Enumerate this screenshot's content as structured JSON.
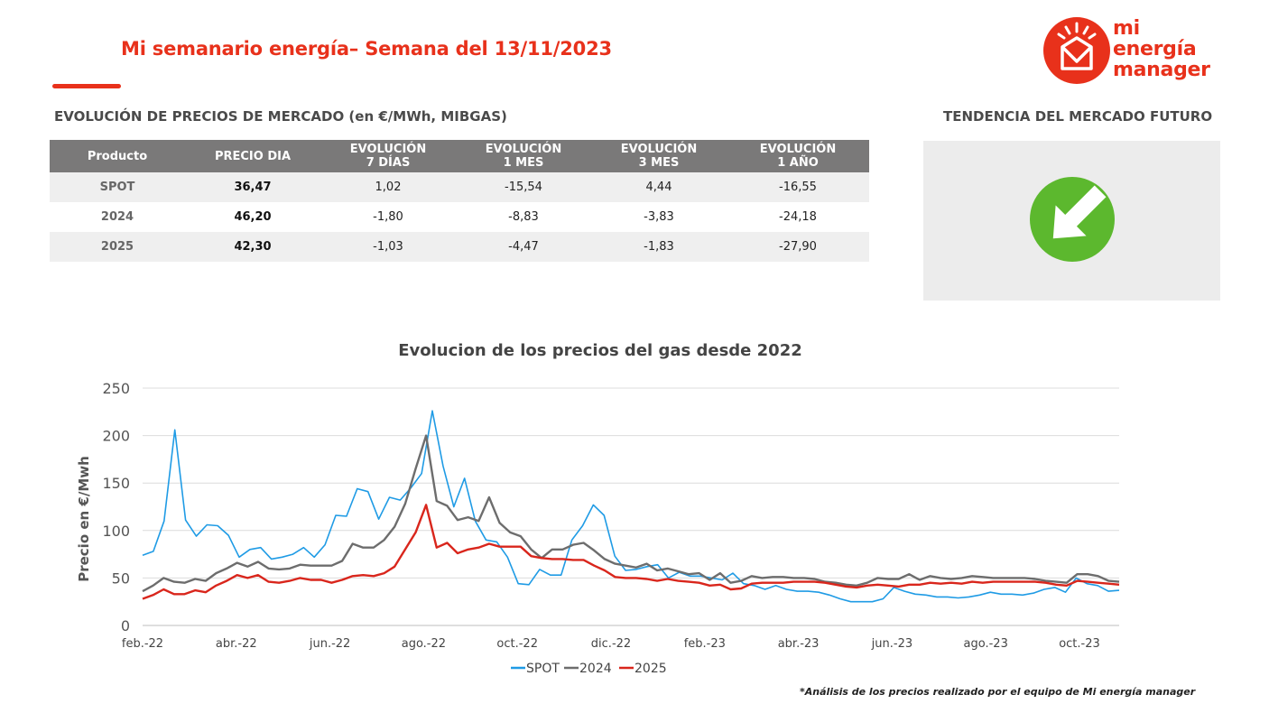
{
  "header": {
    "title": "Mi semanario energía– Semana del 13/11/2023",
    "logo_lines": [
      "mi",
      "energía",
      "manager"
    ]
  },
  "market": {
    "section_title": "EVOLUCIÓN DE PRECIOS DE MERCADO (en €/MWh, MIBGAS)",
    "headers": {
      "product": "Producto",
      "price_day": "PRECIO DIA",
      "d7_line1": "EVOLUCIÓN",
      "d7_line2": "7 DÍAS",
      "m1_line1": "EVOLUCIÓN",
      "m1_line2": "1 MES",
      "m3_line1": "EVOLUCIÓN",
      "m3_line2": "3 MES",
      "y1_line1": "EVOLUCIÓN",
      "y1_line2": "1 AÑO"
    },
    "rows": [
      {
        "product": "SPOT",
        "price": "36,47",
        "d7": "1,02",
        "m1": "-15,54",
        "m3": "4,44",
        "y1": "-16,55"
      },
      {
        "product": "2024",
        "price": "46,20",
        "d7": "-1,80",
        "m1": "-8,83",
        "m3": "-3,83",
        "y1": "-24,18"
      },
      {
        "product": "2025",
        "price": "42,30",
        "d7": "-1,03",
        "m1": "-4,47",
        "m3": "-1,83",
        "y1": "-27,90"
      }
    ]
  },
  "trend": {
    "section_title": "TENDENCIA DEL MERCADO FUTURO",
    "icon": "arrow-down-right-icon",
    "color": "#5cb82e"
  },
  "colors": {
    "brand": "#e8311b",
    "spot": "#1f9be5",
    "y2024": "#6d6d6d",
    "y2025": "#d9261c"
  },
  "chart_data": {
    "type": "line",
    "title": "Evolucion de los precios del gas desde 2022",
    "ylabel": "Precio en €/Mwh",
    "xlabel": "",
    "ylim": [
      0,
      250
    ],
    "yticks": [
      0,
      50,
      100,
      150,
      200,
      250
    ],
    "xtick_labels": [
      "feb.-22",
      "abr.-22",
      "jun.-22",
      "ago.-22",
      "oct.-22",
      "dic.-22",
      "feb.-23",
      "abr.-23",
      "jun.-23",
      "ago.-23",
      "oct.-23"
    ],
    "legend_position": "bottom",
    "grid": true,
    "series": [
      {
        "name": "SPOT",
        "values": [
          74,
          78,
          110,
          206,
          111,
          94,
          106,
          105,
          95,
          72,
          80,
          82,
          70,
          72,
          75,
          82,
          72,
          85,
          116,
          115,
          144,
          141,
          112,
          135,
          132,
          145,
          160,
          226,
          168,
          125,
          155,
          110,
          90,
          88,
          72,
          44,
          43,
          59,
          53,
          53,
          90,
          105,
          127,
          116,
          73,
          58,
          59,
          62,
          64,
          50,
          56,
          52,
          52,
          50,
          48,
          55,
          44,
          42,
          38,
          42,
          38,
          36,
          36,
          35,
          32,
          28,
          25,
          25,
          25,
          28,
          40,
          36,
          33,
          32,
          30,
          30,
          29,
          30,
          32,
          35,
          33,
          33,
          32,
          34,
          38,
          40,
          35,
          50,
          44,
          42,
          36,
          37
        ]
      },
      {
        "name": "2024",
        "values": [
          36,
          42,
          50,
          46,
          45,
          49,
          47,
          55,
          60,
          66,
          62,
          67,
          60,
          59,
          60,
          64,
          63,
          63,
          63,
          68,
          86,
          82,
          82,
          90,
          104,
          128,
          165,
          200,
          131,
          126,
          111,
          114,
          110,
          135,
          108,
          98,
          94,
          80,
          71,
          80,
          80,
          85,
          87,
          79,
          70,
          65,
          63,
          61,
          65,
          58,
          60,
          57,
          54,
          55,
          48,
          55,
          45,
          47,
          52,
          50,
          51,
          51,
          50,
          50,
          49,
          46,
          45,
          43,
          42,
          45,
          50,
          49,
          49,
          54,
          48,
          52,
          50,
          49,
          50,
          52,
          51,
          50,
          50,
          50,
          50,
          49,
          47,
          46,
          45,
          54,
          54,
          52,
          47,
          46
        ]
      },
      {
        "name": "2025",
        "values": [
          28,
          32,
          38,
          33,
          33,
          37,
          35,
          42,
          47,
          53,
          50,
          53,
          46,
          45,
          47,
          50,
          48,
          48,
          45,
          48,
          52,
          53,
          52,
          55,
          62,
          80,
          98,
          127,
          82,
          87,
          76,
          80,
          82,
          86,
          83,
          83,
          83,
          73,
          71,
          70,
          70,
          69,
          69,
          63,
          58,
          51,
          50,
          50,
          49,
          47,
          49,
          47,
          46,
          45,
          42,
          43,
          38,
          39,
          44,
          45,
          45,
          45,
          46,
          46,
          46,
          45,
          43,
          41,
          40,
          42,
          43,
          42,
          41,
          43,
          43,
          45,
          44,
          45,
          44,
          46,
          45,
          46,
          46,
          46,
          46,
          46,
          45,
          43,
          42,
          47,
          46,
          45,
          44,
          43
        ]
      }
    ]
  },
  "footnote": "*Análisis de los precios realizado por el equipo de Mi energía manager"
}
